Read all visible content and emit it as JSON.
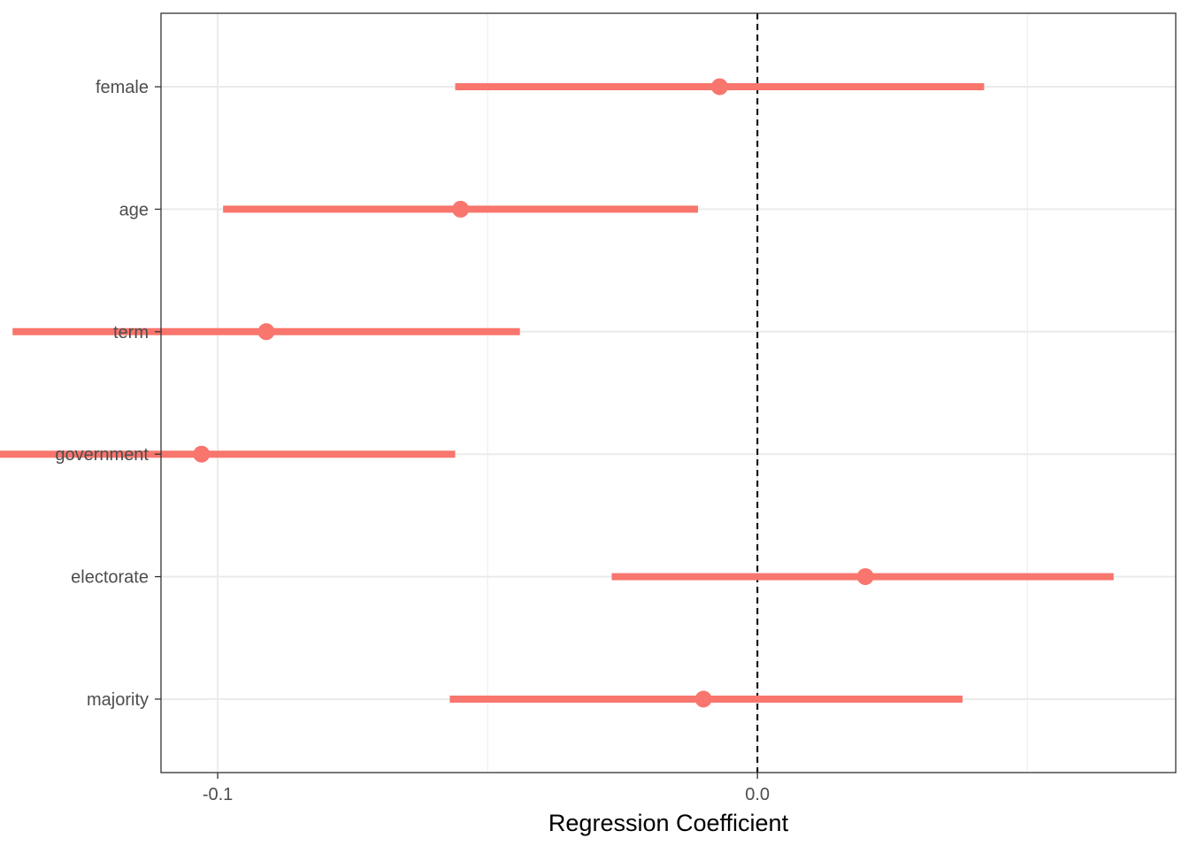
{
  "chart_data": {
    "type": "coefficient-plot",
    "title": "",
    "xlabel": "Regression Coefficient",
    "ylabel": "",
    "xlim": [
      -0.1105,
      0.0775
    ],
    "x_ticks": [
      {
        "value": -0.1,
        "label": "-0.1"
      },
      {
        "value": 0.0,
        "label": "0.0"
      }
    ],
    "x_minor_grid": [
      -0.15,
      -0.05,
      0.05
    ],
    "reference_line": 0.0,
    "grid": true,
    "legend": "none",
    "point_color": "#F8766D",
    "categories": [
      "female",
      "age",
      "term",
      "government",
      "electorate",
      "majority"
    ],
    "estimates": [
      {
        "term": "female",
        "estimate": -0.007,
        "lower": -0.056,
        "upper": 0.042
      },
      {
        "term": "age",
        "estimate": -0.055,
        "lower": -0.099,
        "upper": -0.011
      },
      {
        "term": "term",
        "estimate": -0.091,
        "lower": -0.138,
        "upper": -0.044
      },
      {
        "term": "government",
        "estimate": -0.103,
        "lower": -0.15,
        "upper": -0.056
      },
      {
        "term": "electorate",
        "estimate": 0.02,
        "lower": -0.027,
        "upper": 0.066
      },
      {
        "term": "majority",
        "estimate": -0.01,
        "lower": -0.057,
        "upper": 0.038
      }
    ]
  }
}
